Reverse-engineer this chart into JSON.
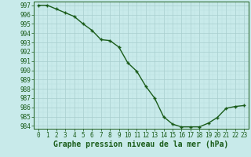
{
  "x": [
    0,
    1,
    2,
    3,
    4,
    5,
    6,
    7,
    8,
    9,
    10,
    11,
    12,
    13,
    14,
    15,
    16,
    17,
    18,
    19,
    20,
    21,
    22,
    23
  ],
  "y": [
    997.0,
    997.0,
    996.6,
    996.2,
    995.8,
    995.0,
    994.3,
    993.3,
    993.2,
    992.5,
    990.8,
    989.9,
    988.3,
    987.0,
    985.0,
    984.2,
    983.9,
    983.9,
    983.9,
    984.3,
    984.9,
    985.9,
    986.1,
    986.2
  ],
  "line_color": "#1a5c1a",
  "marker_color": "#1a5c1a",
  "bg_color": "#c8eaea",
  "grid_color_major": "#a8cece",
  "grid_color_minor": "#b8dede",
  "xlabel": "Graphe pression niveau de la mer (hPa)",
  "ylim": [
    983.7,
    997.4
  ],
  "xlim": [
    -0.5,
    23.5
  ],
  "yticks": [
    984,
    985,
    986,
    987,
    988,
    989,
    990,
    991,
    992,
    993,
    994,
    995,
    996,
    997
  ],
  "xticks": [
    0,
    1,
    2,
    3,
    4,
    5,
    6,
    7,
    8,
    9,
    10,
    11,
    12,
    13,
    14,
    15,
    16,
    17,
    18,
    19,
    20,
    21,
    22,
    23
  ],
  "xlabel_fontsize": 7,
  "tick_fontsize": 5.5,
  "line_width": 1.0,
  "marker_size": 3.5
}
